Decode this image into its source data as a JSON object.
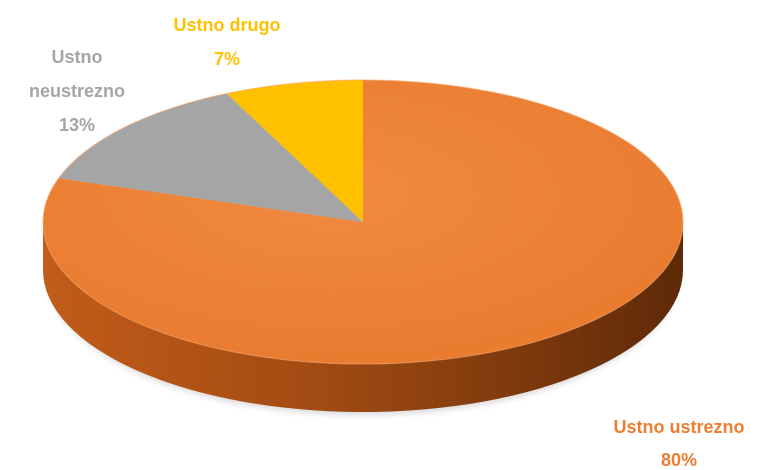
{
  "chart_data": {
    "type": "pie",
    "title": "",
    "style": "3d",
    "slices": [
      {
        "label_lines": [
          "Ustno",
          "ustrezno"
        ],
        "label": "Ustno ustrezno",
        "value": 80,
        "value_label": "80%",
        "color": "#ED7D31"
      },
      {
        "label_lines": [
          "Ustno",
          "neustrezno"
        ],
        "label": "Ustno neustrezno",
        "value": 13,
        "value_label": "13%",
        "color": "#A5A5A5"
      },
      {
        "label_lines": [
          "Ustno drugo"
        ],
        "label": "Ustno drugo",
        "value": 7,
        "value_label": "7%",
        "color": "#FFC000"
      }
    ],
    "label_texts": {
      "ustrezno": "Ustno ustrezno",
      "neustrezno_line1": "Ustno",
      "neustrezno_line2": "neustrezno",
      "drugo": "Ustno drugo"
    }
  }
}
